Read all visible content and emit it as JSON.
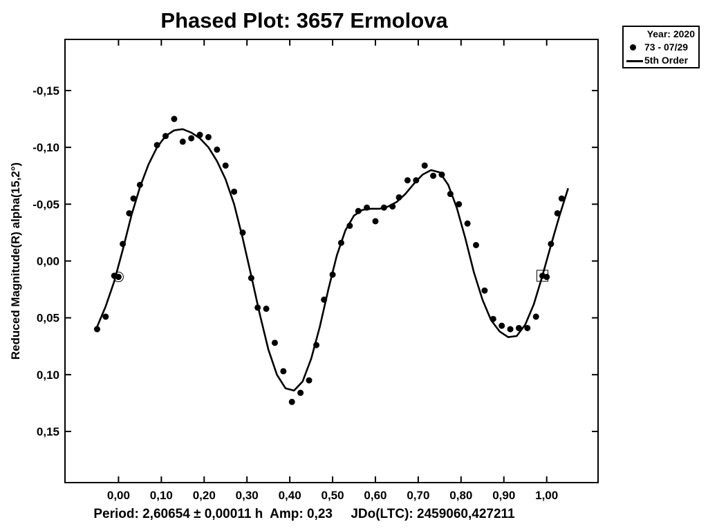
{
  "chart_data": {
    "type": "scatter",
    "title": "Phased Plot: 3657 Ermolova",
    "ylabel": "Reduced Magnitude(R) alpha(15,2°)",
    "xlabel": "",
    "footer": "Period: 2,60654 ± 0,00011 h  Amp: 0,23     JDo(LTC): 2459060,427211",
    "xlim": [
      -0.125,
      1.12
    ],
    "ylim": [
      0.195,
      -0.195
    ],
    "y_inverted": true,
    "x_ticks": [
      {
        "value": 0.0,
        "label": "0,00"
      },
      {
        "value": 0.1,
        "label": "0,10"
      },
      {
        "value": 0.2,
        "label": "0,20"
      },
      {
        "value": 0.3,
        "label": "0,30"
      },
      {
        "value": 0.4,
        "label": "0,40"
      },
      {
        "value": 0.5,
        "label": "0,50"
      },
      {
        "value": 0.6,
        "label": "0,60"
      },
      {
        "value": 0.7,
        "label": "0,70"
      },
      {
        "value": 0.8,
        "label": "0,80"
      },
      {
        "value": 0.9,
        "label": "0,90"
      },
      {
        "value": 1.0,
        "label": "1,00"
      }
    ],
    "y_ticks": [
      {
        "value": -0.15,
        "label": "-0,15"
      },
      {
        "value": -0.1,
        "label": "-0,10"
      },
      {
        "value": -0.05,
        "label": "-0,05"
      },
      {
        "value": 0.0,
        "label": "0,00"
      },
      {
        "value": 0.05,
        "label": "0,05"
      },
      {
        "value": 0.1,
        "label": "0,10"
      },
      {
        "value": 0.15,
        "label": "0,15"
      }
    ],
    "grid": false,
    "legend": {
      "position": "top-right",
      "header": "Year: 2020",
      "entries": [
        {
          "label": "73 - 07/29",
          "marker": "dot"
        },
        {
          "label": "5th Order",
          "marker": "line"
        }
      ]
    },
    "series": [
      {
        "name": "73 - 07/29",
        "type": "scatter",
        "points": [
          [
            -0.05,
            0.06
          ],
          [
            -0.03,
            0.049
          ],
          [
            -0.01,
            0.013
          ],
          [
            0.0,
            0.014
          ],
          [
            0.01,
            -0.015
          ],
          [
            0.025,
            -0.042
          ],
          [
            0.035,
            -0.055
          ],
          [
            0.05,
            -0.067
          ],
          [
            0.09,
            -0.102
          ],
          [
            0.11,
            -0.11
          ],
          [
            0.13,
            -0.125
          ],
          [
            0.15,
            -0.105
          ],
          [
            0.17,
            -0.108
          ],
          [
            0.19,
            -0.111
          ],
          [
            0.21,
            -0.109
          ],
          [
            0.23,
            -0.098
          ],
          [
            0.25,
            -0.084
          ],
          [
            0.27,
            -0.061
          ],
          [
            0.29,
            -0.025
          ],
          [
            0.31,
            0.015
          ],
          [
            0.325,
            0.041
          ],
          [
            0.345,
            0.042
          ],
          [
            0.365,
            0.072
          ],
          [
            0.385,
            0.097
          ],
          [
            0.405,
            0.124
          ],
          [
            0.425,
            0.116
          ],
          [
            0.445,
            0.105
          ],
          [
            0.462,
            0.074
          ],
          [
            0.48,
            0.034
          ],
          [
            0.5,
            0.012
          ],
          [
            0.52,
            -0.016
          ],
          [
            0.54,
            -0.031
          ],
          [
            0.56,
            -0.044
          ],
          [
            0.58,
            -0.047
          ],
          [
            0.6,
            -0.035
          ],
          [
            0.62,
            -0.047
          ],
          [
            0.64,
            -0.048
          ],
          [
            0.655,
            -0.056
          ],
          [
            0.675,
            -0.071
          ],
          [
            0.695,
            -0.071
          ],
          [
            0.715,
            -0.084
          ],
          [
            0.735,
            -0.075
          ],
          [
            0.755,
            -0.076
          ],
          [
            0.775,
            -0.059
          ],
          [
            0.795,
            -0.05
          ],
          [
            0.815,
            -0.033
          ],
          [
            0.835,
            -0.014
          ],
          [
            0.855,
            0.026
          ],
          [
            0.875,
            0.051
          ],
          [
            0.895,
            0.057
          ],
          [
            0.915,
            0.06
          ],
          [
            0.935,
            0.059
          ],
          [
            0.955,
            0.059
          ],
          [
            0.975,
            0.049
          ],
          [
            0.99,
            0.013
          ],
          [
            1.0,
            0.014
          ],
          [
            1.01,
            -0.015
          ],
          [
            1.025,
            -0.042
          ],
          [
            1.035,
            -0.055
          ]
        ]
      },
      {
        "name": "5th Order",
        "type": "line",
        "points": [
          [
            -0.05,
            0.058
          ],
          [
            -0.03,
            0.04
          ],
          [
            -0.01,
            0.018
          ],
          [
            0.01,
            -0.01
          ],
          [
            0.03,
            -0.04
          ],
          [
            0.05,
            -0.065
          ],
          [
            0.07,
            -0.085
          ],
          [
            0.09,
            -0.1
          ],
          [
            0.11,
            -0.11
          ],
          [
            0.13,
            -0.115
          ],
          [
            0.15,
            -0.116
          ],
          [
            0.17,
            -0.113
          ],
          [
            0.19,
            -0.108
          ],
          [
            0.21,
            -0.1
          ],
          [
            0.23,
            -0.088
          ],
          [
            0.25,
            -0.072
          ],
          [
            0.27,
            -0.05
          ],
          [
            0.29,
            -0.02
          ],
          [
            0.31,
            0.013
          ],
          [
            0.33,
            0.047
          ],
          [
            0.35,
            0.078
          ],
          [
            0.37,
            0.1
          ],
          [
            0.39,
            0.112
          ],
          [
            0.41,
            0.114
          ],
          [
            0.43,
            0.106
          ],
          [
            0.45,
            0.086
          ],
          [
            0.47,
            0.058
          ],
          [
            0.49,
            0.025
          ],
          [
            0.51,
            -0.005
          ],
          [
            0.53,
            -0.027
          ],
          [
            0.55,
            -0.04
          ],
          [
            0.57,
            -0.045
          ],
          [
            0.59,
            -0.046
          ],
          [
            0.61,
            -0.046
          ],
          [
            0.63,
            -0.048
          ],
          [
            0.65,
            -0.052
          ],
          [
            0.67,
            -0.059
          ],
          [
            0.69,
            -0.068
          ],
          [
            0.71,
            -0.076
          ],
          [
            0.73,
            -0.08
          ],
          [
            0.75,
            -0.078
          ],
          [
            0.77,
            -0.067
          ],
          [
            0.79,
            -0.047
          ],
          [
            0.81,
            -0.02
          ],
          [
            0.83,
            0.01
          ],
          [
            0.85,
            0.034
          ],
          [
            0.87,
            0.052
          ],
          [
            0.89,
            0.062
          ],
          [
            0.91,
            0.067
          ],
          [
            0.93,
            0.066
          ],
          [
            0.95,
            0.056
          ],
          [
            0.97,
            0.038
          ],
          [
            0.99,
            0.013
          ],
          [
            1.01,
            -0.014
          ],
          [
            1.03,
            -0.04
          ],
          [
            1.05,
            -0.064
          ]
        ]
      }
    ],
    "markers": [
      {
        "shape": "circle",
        "x": 0.0,
        "y": 0.014
      },
      {
        "shape": "square",
        "x": 0.99,
        "y": 0.013
      }
    ]
  }
}
